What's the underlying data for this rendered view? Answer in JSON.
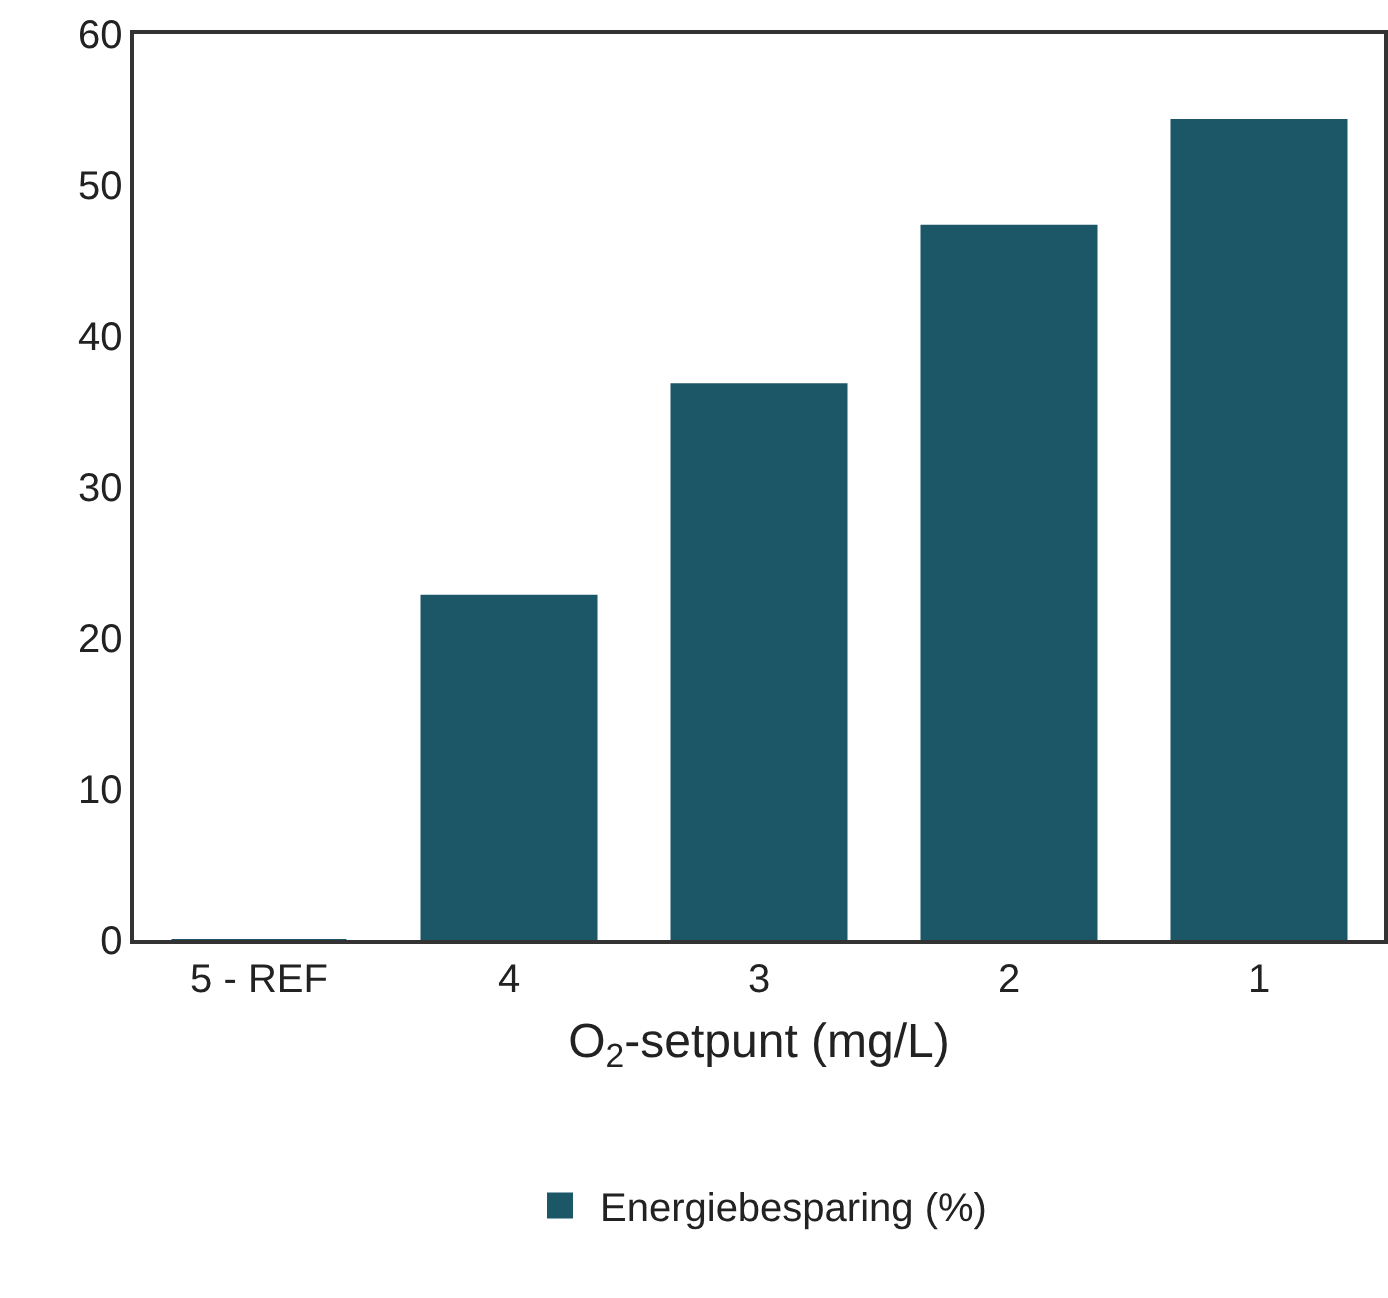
{
  "chart_data": {
    "type": "bar",
    "categories": [
      "5 - REF",
      "4",
      "3",
      "2",
      "1"
    ],
    "series": [
      {
        "name": "Energiebesparing (%)",
        "color": "#1b5767",
        "values": [
          0,
          22.8,
          36.8,
          47.3,
          54.3
        ]
      }
    ],
    "xlabel": "O$_{2}$-setpunt (mg/L)",
    "ylim": [
      0,
      60
    ],
    "yticks": [
      0,
      10,
      20,
      30,
      40,
      50,
      60
    ],
    "grid": false,
    "legend": "bottom"
  }
}
